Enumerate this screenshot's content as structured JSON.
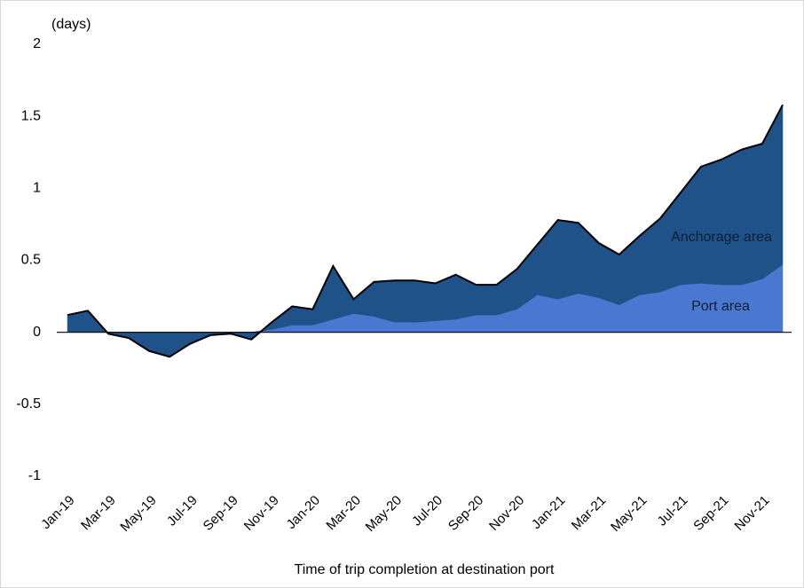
{
  "chart_data": {
    "type": "stacked_area",
    "y_label": "(days)",
    "x_label": "Time of trip completion at destination port",
    "categories": [
      "Jan-19",
      null,
      "Mar-19",
      null,
      "May-19",
      null,
      "Jul-19",
      null,
      "Sep-19",
      null,
      "Nov-19",
      null,
      "Jan-20",
      null,
      "Mar-20",
      null,
      "May-20",
      null,
      "Jul-20",
      null,
      "Sep-20",
      null,
      "Nov-20",
      null,
      "Jan-21",
      null,
      "Mar-21",
      null,
      "May-21",
      null,
      "Jul-21",
      null,
      "Sep-21",
      null,
      "Nov-21",
      null
    ],
    "series": [
      {
        "name": "Port area",
        "color": "#4a78d0",
        "values": [
          0,
          0,
          0,
          0,
          0,
          0,
          0,
          0,
          0,
          0,
          0.02,
          0.05,
          0.05,
          0.09,
          0.13,
          0.11,
          0.07,
          0.07,
          0.08,
          0.09,
          0.12,
          0.12,
          0.16,
          0.26,
          0.23,
          0.27,
          0.24,
          0.19,
          0.26,
          0.28,
          0.33,
          0.34,
          0.33,
          0.33,
          0.37,
          0.47
        ]
      },
      {
        "name": "Anchorage area",
        "color": "#1f5289",
        "values": [
          0.12,
          0.15,
          -0.01,
          -0.04,
          -0.13,
          -0.17,
          -0.08,
          -0.02,
          -0.01,
          -0.05,
          0.05,
          0.13,
          0.11,
          0.37,
          0.1,
          0.24,
          0.29,
          0.29,
          0.26,
          0.31,
          0.21,
          0.21,
          0.28,
          0.35,
          0.55,
          0.49,
          0.38,
          0.35,
          0.41,
          0.51,
          0.64,
          0.81,
          0.87,
          0.94,
          0.94,
          1.11
        ]
      }
    ],
    "ylim": [
      -1,
      2
    ],
    "yticks": [
      -1,
      -0.5,
      0,
      0.5,
      1,
      1.5,
      2
    ],
    "grid": false
  }
}
